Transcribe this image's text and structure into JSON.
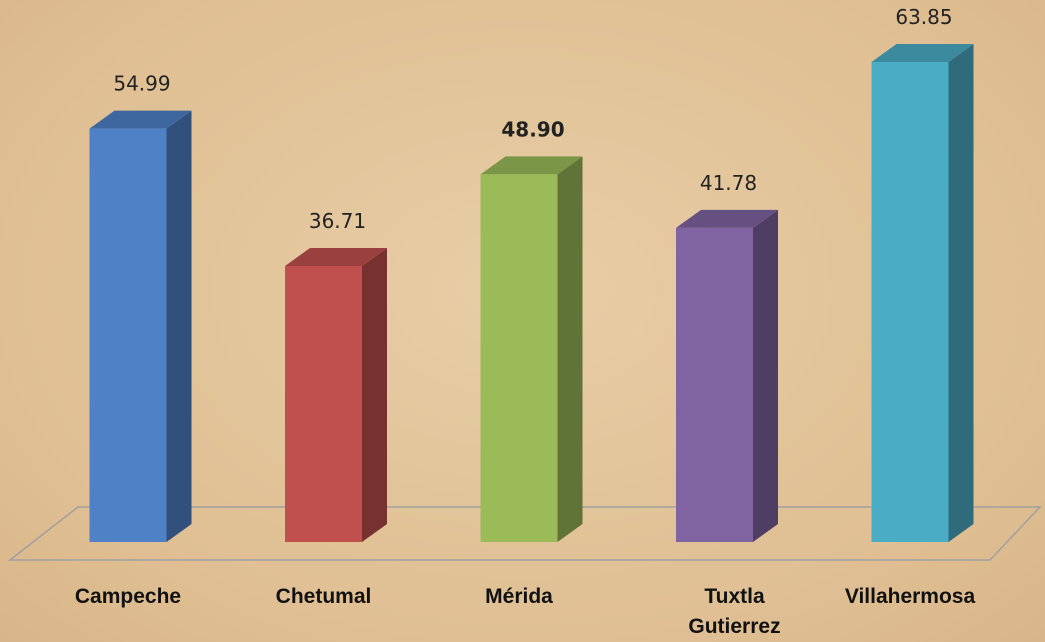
{
  "chart_data": {
    "type": "bar3d",
    "categories": [
      "Campeche",
      "Chetumal",
      "Mérida",
      "Tuxtla Gutierrez",
      "Villahermosa"
    ],
    "values": [
      54.99,
      36.71,
      48.9,
      41.78,
      63.85
    ],
    "value_labels": [
      "54.99",
      "36.71",
      "48.90",
      "41.78",
      "63.85"
    ],
    "colors": [
      "#4f81c7",
      "#c0504d",
      "#9bbb59",
      "#8064a2",
      "#4bacc6"
    ]
  }
}
